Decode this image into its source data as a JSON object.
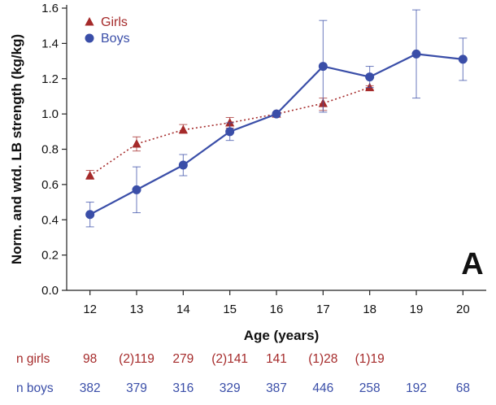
{
  "chart_data": {
    "type": "line",
    "xlabel": "Age (years)",
    "ylabel": "Norm. and wtd. LB strength (kg/kg)",
    "ylim": [
      0.0,
      1.6
    ],
    "yticks": [
      "0.0",
      "0.2",
      "0.4",
      "0.6",
      "0.8",
      "1.0",
      "1.2",
      "1.4",
      "1.6"
    ],
    "xticks": [
      "12",
      "13",
      "14",
      "15",
      "16",
      "17",
      "18",
      "19",
      "20"
    ],
    "panel_label": "A",
    "legend": {
      "placement": "top-left",
      "entries": [
        "Girls",
        "Boys"
      ]
    },
    "series": [
      {
        "name": "Girls",
        "color": "#a52a2a",
        "marker": "triangle",
        "line": "dotted",
        "x": [
          12,
          13,
          14,
          15,
          16,
          17,
          18
        ],
        "values": [
          0.65,
          0.83,
          0.91,
          0.95,
          1.0,
          1.06,
          1.15
        ],
        "err_low": [
          0.63,
          0.79,
          0.89,
          0.92,
          1.0,
          1.02,
          1.14
        ],
        "err_high": [
          0.68,
          0.87,
          0.94,
          0.98,
          1.0,
          1.09,
          1.16
        ]
      },
      {
        "name": "Boys",
        "color": "#3a4ea8",
        "marker": "circle",
        "line": "solid",
        "x": [
          12,
          13,
          14,
          15,
          16,
          17,
          18,
          19,
          20
        ],
        "values": [
          0.43,
          0.57,
          0.71,
          0.9,
          1.0,
          1.27,
          1.21,
          1.34,
          1.31
        ],
        "err_low": [
          0.36,
          0.44,
          0.65,
          0.85,
          1.0,
          1.01,
          1.15,
          1.09,
          1.19
        ],
        "err_high": [
          0.5,
          0.7,
          0.77,
          0.95,
          1.0,
          1.53,
          1.27,
          1.59,
          1.43
        ]
      }
    ],
    "counts": [
      {
        "label": "n girls",
        "color": "#a52a2a",
        "values": [
          "98",
          "(2)119",
          "279",
          "(2)141",
          "141",
          "(1)28",
          "(1)19"
        ]
      },
      {
        "label": "n boys",
        "color": "#3a4ea8",
        "values": [
          "382",
          "379",
          "316",
          "329",
          "387",
          "446",
          "258",
          "192",
          "68"
        ]
      }
    ]
  }
}
